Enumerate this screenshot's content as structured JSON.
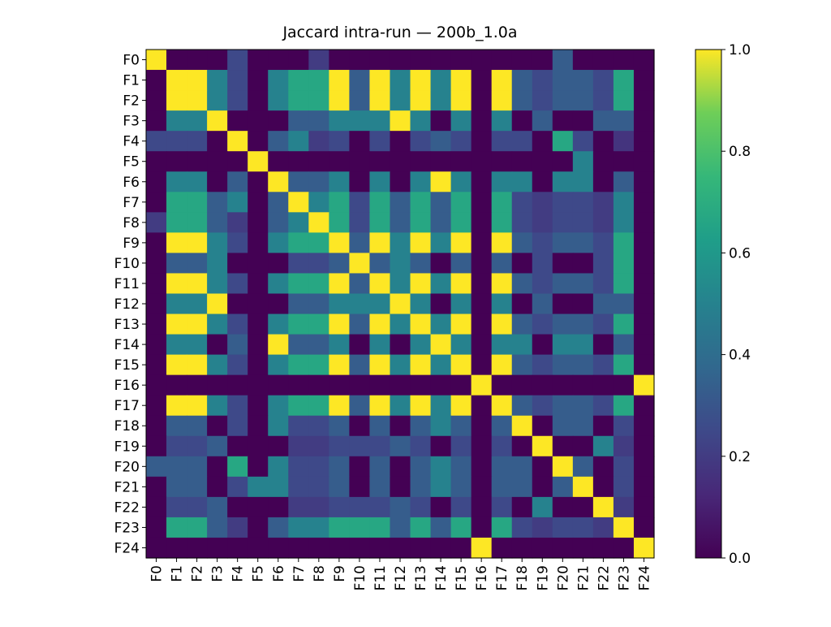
{
  "chart_data": {
    "type": "heatmap",
    "title": "Jaccard intra-run — 200b_1.0a",
    "xlabel": "",
    "ylabel": "",
    "x_labels": [
      "F0",
      "F1",
      "F2",
      "F3",
      "F4",
      "F5",
      "F6",
      "F7",
      "F8",
      "F9",
      "F10",
      "F11",
      "F12",
      "F13",
      "F14",
      "F15",
      "F16",
      "F17",
      "F18",
      "F19",
      "F20",
      "F21",
      "F22",
      "F23",
      "F24"
    ],
    "y_labels": [
      "F0",
      "F1",
      "F2",
      "F3",
      "F4",
      "F5",
      "F6",
      "F7",
      "F8",
      "F9",
      "F10",
      "F11",
      "F12",
      "F13",
      "F14",
      "F15",
      "F16",
      "F17",
      "F18",
      "F19",
      "F20",
      "F21",
      "F22",
      "F23",
      "F24"
    ],
    "colorbar": {
      "min": 0.0,
      "max": 1.0,
      "ticks": [
        0.0,
        0.2,
        0.4,
        0.6,
        0.8,
        1.0
      ],
      "tick_labels": [
        "0.0",
        "0.2",
        "0.4",
        "0.6",
        "0.8",
        "1.0"
      ],
      "colormap": "viridis"
    },
    "grid": false,
    "values": [
      [
        1.0,
        0.0,
        0.0,
        0.0,
        0.25,
        0.0,
        0.0,
        0.0,
        0.2,
        0.0,
        0.0,
        0.0,
        0.0,
        0.0,
        0.0,
        0.0,
        0.0,
        0.0,
        0.0,
        0.0,
        0.33,
        0.0,
        0.0,
        0.0,
        0.0
      ],
      [
        0.0,
        1.0,
        1.0,
        0.5,
        0.25,
        0.0,
        0.5,
        0.67,
        0.67,
        1.0,
        0.33,
        1.0,
        0.5,
        1.0,
        0.5,
        1.0,
        0.0,
        1.0,
        0.33,
        0.25,
        0.33,
        0.33,
        0.25,
        0.67,
        0.0
      ],
      [
        0.0,
        1.0,
        1.0,
        0.5,
        0.25,
        0.0,
        0.5,
        0.67,
        0.67,
        1.0,
        0.33,
        1.0,
        0.5,
        1.0,
        0.5,
        1.0,
        0.0,
        1.0,
        0.33,
        0.25,
        0.33,
        0.33,
        0.25,
        0.67,
        0.0
      ],
      [
        0.0,
        0.5,
        0.5,
        1.0,
        0.0,
        0.0,
        0.0,
        0.33,
        0.33,
        0.5,
        0.5,
        0.5,
        1.0,
        0.5,
        0.0,
        0.5,
        0.0,
        0.5,
        0.0,
        0.33,
        0.0,
        0.0,
        0.33,
        0.33,
        0.0
      ],
      [
        0.25,
        0.25,
        0.25,
        0.0,
        1.0,
        0.0,
        0.33,
        0.5,
        0.2,
        0.25,
        0.0,
        0.25,
        0.0,
        0.25,
        0.33,
        0.25,
        0.0,
        0.25,
        0.25,
        0.0,
        0.67,
        0.25,
        0.0,
        0.17,
        0.0
      ],
      [
        0.0,
        0.0,
        0.0,
        0.0,
        0.0,
        1.0,
        0.0,
        0.0,
        0.0,
        0.0,
        0.0,
        0.0,
        0.0,
        0.0,
        0.0,
        0.0,
        0.0,
        0.0,
        0.0,
        0.0,
        0.0,
        0.5,
        0.0,
        0.0,
        0.0
      ],
      [
        0.0,
        0.5,
        0.5,
        0.0,
        0.33,
        0.0,
        1.0,
        0.33,
        0.33,
        0.5,
        0.0,
        0.5,
        0.0,
        0.5,
        1.0,
        0.5,
        0.0,
        0.5,
        0.5,
        0.0,
        0.5,
        0.5,
        0.0,
        0.33,
        0.0
      ],
      [
        0.0,
        0.67,
        0.67,
        0.33,
        0.5,
        0.0,
        0.33,
        1.0,
        0.5,
        0.67,
        0.25,
        0.67,
        0.33,
        0.67,
        0.33,
        0.67,
        0.0,
        0.67,
        0.25,
        0.2,
        0.25,
        0.25,
        0.2,
        0.5,
        0.0
      ],
      [
        0.2,
        0.67,
        0.67,
        0.33,
        0.2,
        0.0,
        0.33,
        0.5,
        1.0,
        0.67,
        0.25,
        0.67,
        0.33,
        0.67,
        0.33,
        0.67,
        0.0,
        0.67,
        0.25,
        0.2,
        0.25,
        0.25,
        0.2,
        0.5,
        0.0
      ],
      [
        0.0,
        1.0,
        1.0,
        0.5,
        0.25,
        0.0,
        0.5,
        0.67,
        0.67,
        1.0,
        0.33,
        1.0,
        0.5,
        1.0,
        0.5,
        1.0,
        0.0,
        1.0,
        0.33,
        0.25,
        0.33,
        0.33,
        0.25,
        0.67,
        0.0
      ],
      [
        0.0,
        0.33,
        0.33,
        0.5,
        0.0,
        0.0,
        0.0,
        0.25,
        0.25,
        0.33,
        1.0,
        0.33,
        0.5,
        0.33,
        0.0,
        0.33,
        0.0,
        0.33,
        0.0,
        0.25,
        0.0,
        0.0,
        0.25,
        0.67,
        0.0
      ],
      [
        0.0,
        1.0,
        1.0,
        0.5,
        0.25,
        0.0,
        0.5,
        0.67,
        0.67,
        1.0,
        0.33,
        1.0,
        0.5,
        1.0,
        0.5,
        1.0,
        0.0,
        1.0,
        0.33,
        0.25,
        0.33,
        0.33,
        0.25,
        0.67,
        0.0
      ],
      [
        0.0,
        0.5,
        0.5,
        1.0,
        0.0,
        0.0,
        0.0,
        0.33,
        0.33,
        0.5,
        0.5,
        0.5,
        1.0,
        0.5,
        0.0,
        0.5,
        0.0,
        0.5,
        0.0,
        0.33,
        0.0,
        0.0,
        0.33,
        0.33,
        0.0
      ],
      [
        0.0,
        1.0,
        1.0,
        0.5,
        0.25,
        0.0,
        0.5,
        0.67,
        0.67,
        1.0,
        0.33,
        1.0,
        0.5,
        1.0,
        0.5,
        1.0,
        0.0,
        1.0,
        0.33,
        0.25,
        0.33,
        0.33,
        0.25,
        0.67,
        0.0
      ],
      [
        0.0,
        0.5,
        0.5,
        0.0,
        0.33,
        0.0,
        1.0,
        0.33,
        0.33,
        0.5,
        0.0,
        0.5,
        0.0,
        0.5,
        1.0,
        0.5,
        0.0,
        0.5,
        0.5,
        0.0,
        0.5,
        0.5,
        0.0,
        0.33,
        0.0
      ],
      [
        0.0,
        1.0,
        1.0,
        0.5,
        0.25,
        0.0,
        0.5,
        0.67,
        0.67,
        1.0,
        0.33,
        1.0,
        0.5,
        1.0,
        0.5,
        1.0,
        0.0,
        1.0,
        0.33,
        0.25,
        0.33,
        0.33,
        0.25,
        0.67,
        0.0
      ],
      [
        0.0,
        0.0,
        0.0,
        0.0,
        0.0,
        0.0,
        0.0,
        0.0,
        0.0,
        0.0,
        0.0,
        0.0,
        0.0,
        0.0,
        0.0,
        0.0,
        1.0,
        0.0,
        0.0,
        0.0,
        0.0,
        0.0,
        0.0,
        0.0,
        1.0
      ],
      [
        0.0,
        1.0,
        1.0,
        0.5,
        0.25,
        0.0,
        0.5,
        0.67,
        0.67,
        1.0,
        0.33,
        1.0,
        0.5,
        1.0,
        0.5,
        1.0,
        0.0,
        1.0,
        0.33,
        0.25,
        0.33,
        0.33,
        0.25,
        0.67,
        0.0
      ],
      [
        0.0,
        0.33,
        0.33,
        0.0,
        0.25,
        0.0,
        0.5,
        0.25,
        0.25,
        0.33,
        0.0,
        0.33,
        0.0,
        0.33,
        0.5,
        0.33,
        0.0,
        0.33,
        1.0,
        0.0,
        0.33,
        0.33,
        0.0,
        0.25,
        0.0
      ],
      [
        0.0,
        0.25,
        0.25,
        0.33,
        0.0,
        0.0,
        0.0,
        0.2,
        0.2,
        0.25,
        0.25,
        0.25,
        0.33,
        0.25,
        0.0,
        0.25,
        0.0,
        0.25,
        0.0,
        1.0,
        0.0,
        0.0,
        0.5,
        0.2,
        0.0
      ],
      [
        0.33,
        0.33,
        0.33,
        0.0,
        0.67,
        0.0,
        0.5,
        0.25,
        0.25,
        0.33,
        0.0,
        0.33,
        0.0,
        0.33,
        0.5,
        0.33,
        0.0,
        0.33,
        0.33,
        0.0,
        1.0,
        0.33,
        0.0,
        0.25,
        0.0
      ],
      [
        0.0,
        0.33,
        0.33,
        0.0,
        0.25,
        0.5,
        0.5,
        0.25,
        0.25,
        0.33,
        0.0,
        0.33,
        0.0,
        0.33,
        0.5,
        0.33,
        0.0,
        0.33,
        0.33,
        0.0,
        0.33,
        1.0,
        0.0,
        0.25,
        0.0
      ],
      [
        0.0,
        0.25,
        0.25,
        0.33,
        0.0,
        0.0,
        0.0,
        0.2,
        0.2,
        0.25,
        0.25,
        0.25,
        0.33,
        0.25,
        0.0,
        0.25,
        0.0,
        0.25,
        0.0,
        0.5,
        0.0,
        0.0,
        1.0,
        0.2,
        0.0
      ],
      [
        0.0,
        0.67,
        0.67,
        0.33,
        0.2,
        0.0,
        0.33,
        0.5,
        0.5,
        0.67,
        0.67,
        0.67,
        0.33,
        0.67,
        0.33,
        0.67,
        0.0,
        0.67,
        0.25,
        0.2,
        0.25,
        0.25,
        0.2,
        1.0,
        0.0
      ],
      [
        0.0,
        0.0,
        0.0,
        0.0,
        0.0,
        0.0,
        0.0,
        0.0,
        0.0,
        0.0,
        0.0,
        0.0,
        0.0,
        0.0,
        0.0,
        0.0,
        1.0,
        0.0,
        0.0,
        0.0,
        0.0,
        0.0,
        0.0,
        0.0,
        1.0
      ]
    ]
  }
}
